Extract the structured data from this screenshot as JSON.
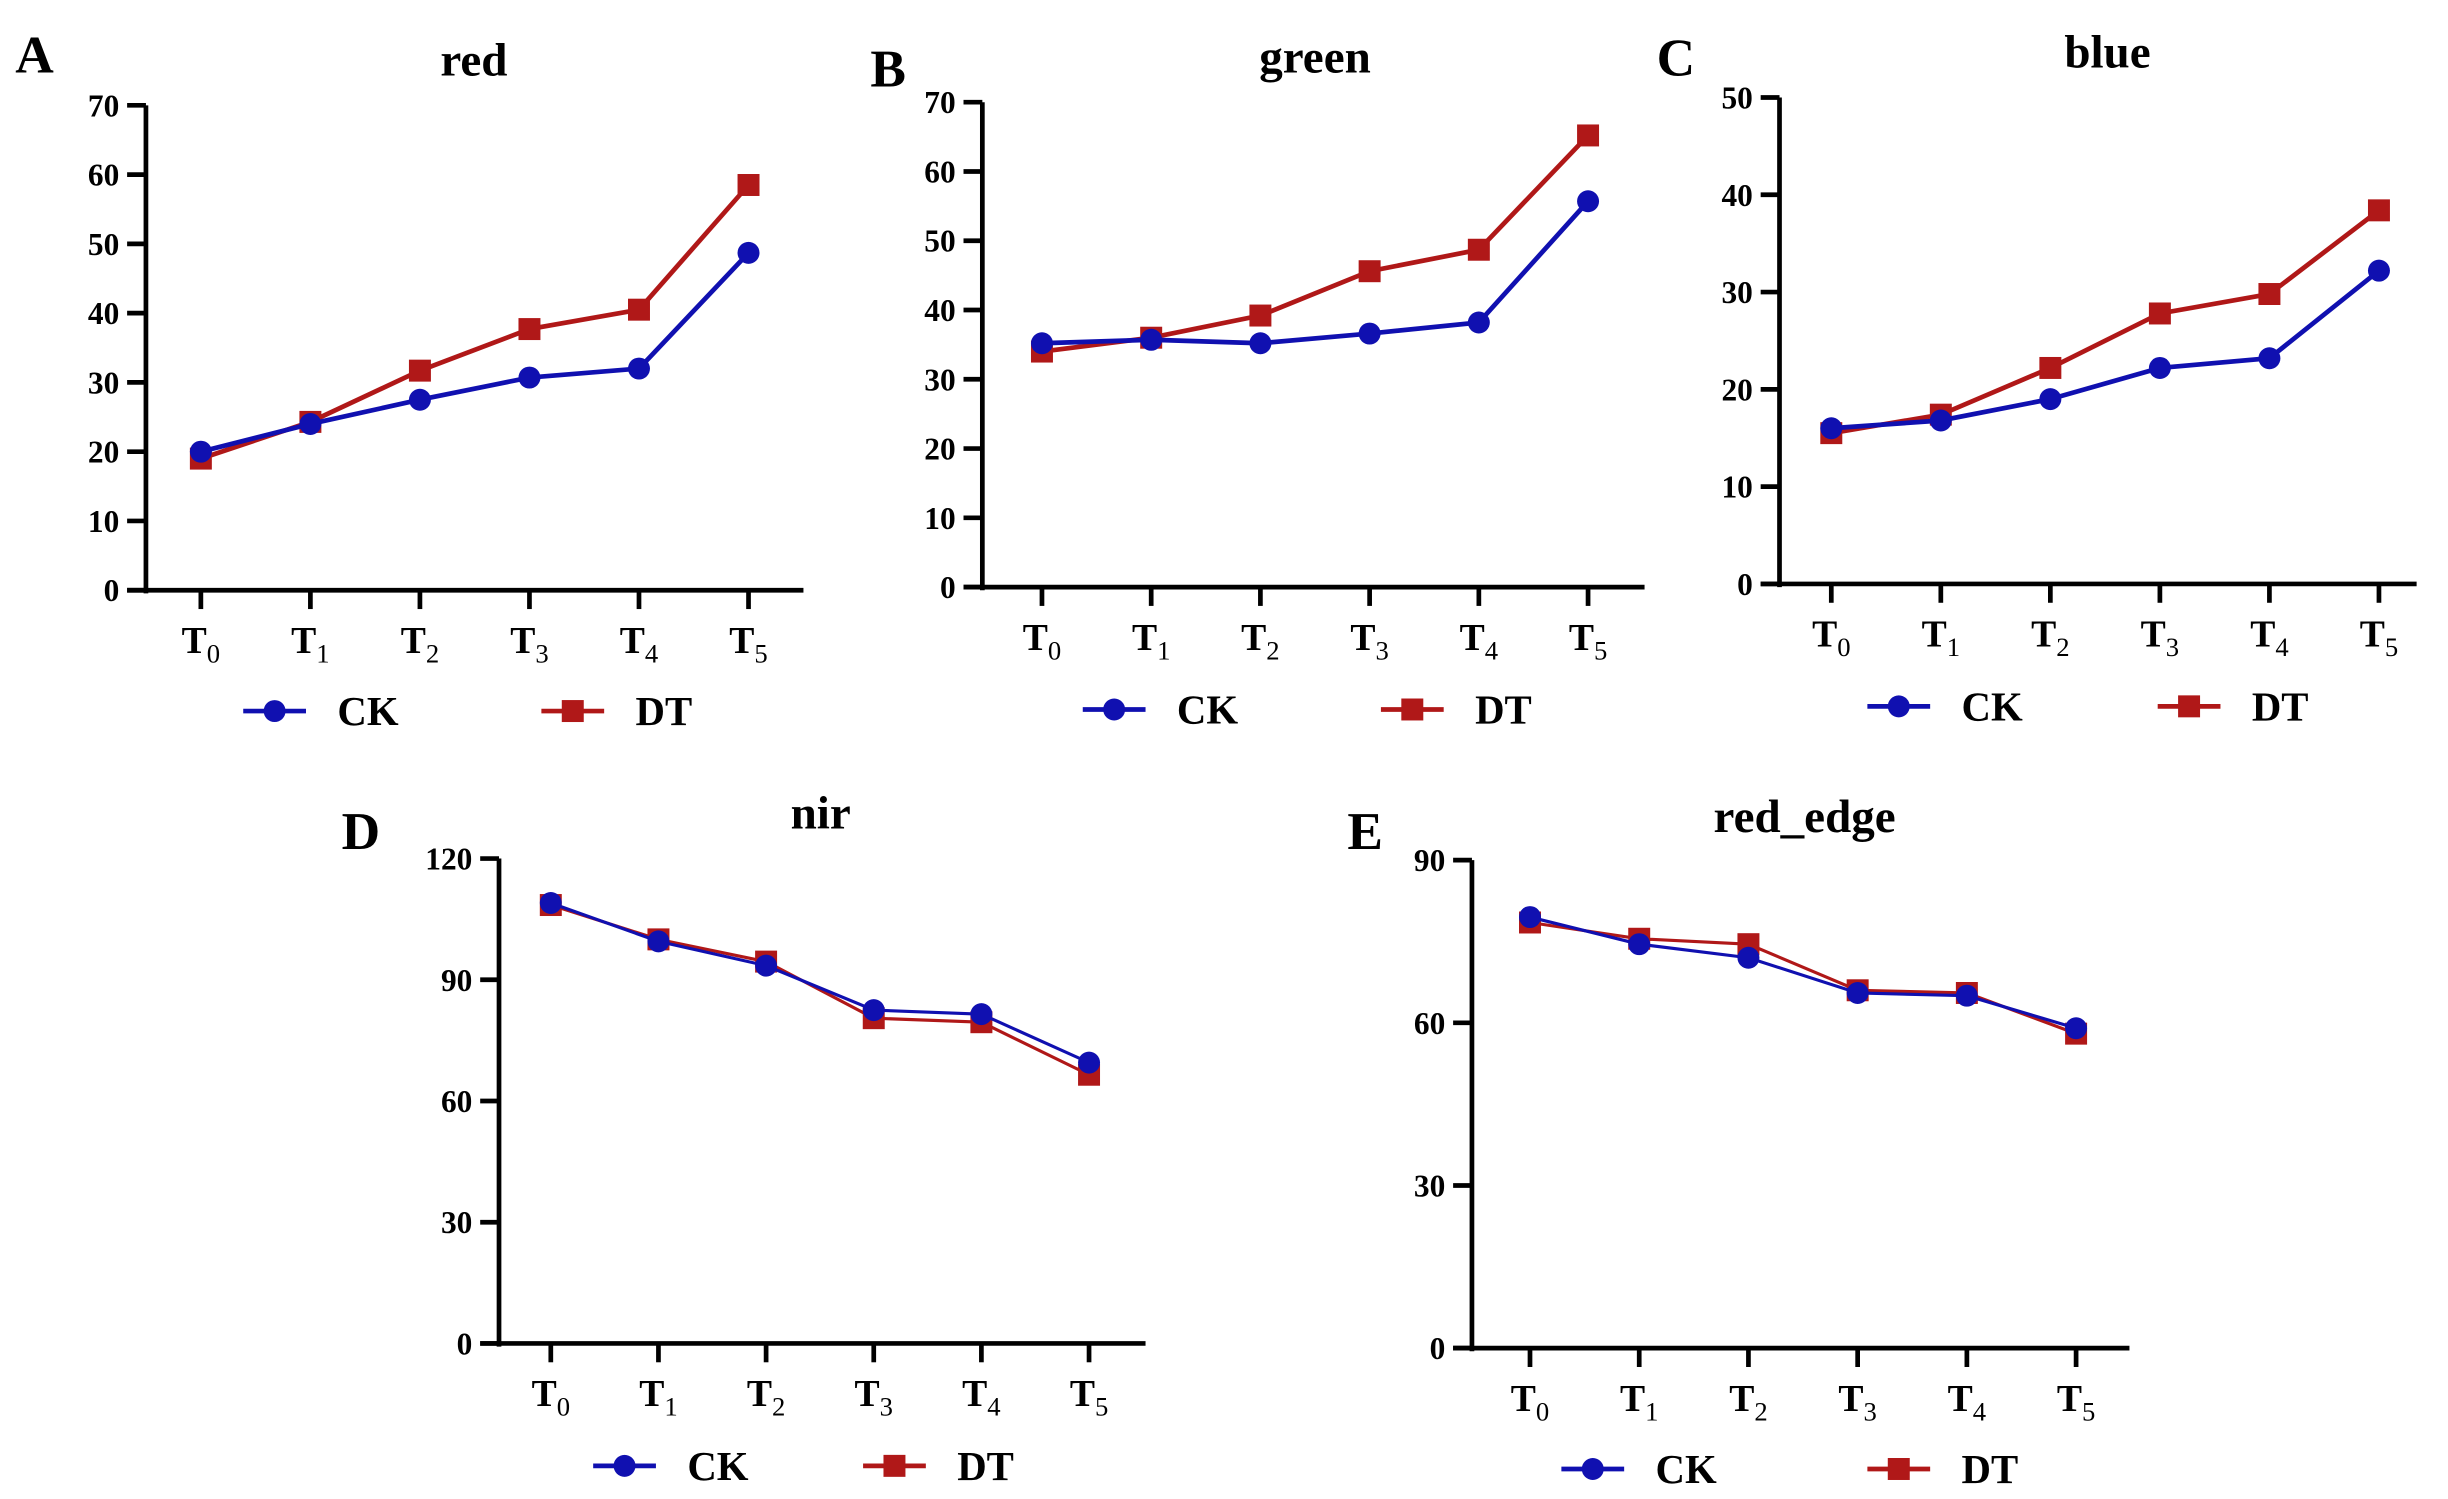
{
  "colors": {
    "CK": "#1010b0",
    "DT": "#b01818"
  },
  "chart_data": [
    {
      "panel": "A",
      "type": "line",
      "title": "red",
      "categories": [
        "T0",
        "T1",
        "T2",
        "T3",
        "T4",
        "T5"
      ],
      "ylim": [
        0,
        70
      ],
      "yticks": [
        0,
        10,
        20,
        30,
        40,
        50,
        60,
        70
      ],
      "legend": "bottom",
      "series": [
        {
          "name": "CK",
          "marker": "circle",
          "values": [
            20,
            24,
            27.5,
            30.7,
            32,
            48.7
          ]
        },
        {
          "name": "DT",
          "marker": "square",
          "values": [
            19,
            24.3,
            31.7,
            37.7,
            40.5,
            58.5
          ]
        }
      ]
    },
    {
      "panel": "B",
      "type": "line",
      "title": "green",
      "categories": [
        "T0",
        "T1",
        "T2",
        "T3",
        "T4",
        "T5"
      ],
      "ylim": [
        0,
        70
      ],
      "yticks": [
        0,
        10,
        20,
        30,
        40,
        50,
        60,
        70
      ],
      "legend": "bottom",
      "series": [
        {
          "name": "CK",
          "marker": "circle",
          "values": [
            35.2,
            35.7,
            35.2,
            36.6,
            38.2,
            55.7
          ]
        },
        {
          "name": "DT",
          "marker": "square",
          "values": [
            34,
            36,
            39.2,
            45.6,
            48.7,
            65.2
          ]
        }
      ]
    },
    {
      "panel": "C",
      "type": "line",
      "title": "blue",
      "categories": [
        "T0",
        "T1",
        "T2",
        "T3",
        "T4",
        "T5"
      ],
      "ylim": [
        0,
        50
      ],
      "yticks": [
        0,
        10,
        20,
        30,
        40,
        50
      ],
      "legend": "bottom",
      "series": [
        {
          "name": "CK",
          "marker": "circle",
          "values": [
            16,
            16.8,
            19,
            22.2,
            23.2,
            32.2
          ]
        },
        {
          "name": "DT",
          "marker": "square",
          "values": [
            15.5,
            17.4,
            22.2,
            27.8,
            29.8,
            38.4
          ]
        }
      ]
    },
    {
      "panel": "D",
      "type": "line",
      "title": "nir",
      "categories": [
        "T0",
        "T1",
        "T2",
        "T3",
        "T4",
        "T5"
      ],
      "ylim": [
        0,
        120
      ],
      "yticks": [
        0,
        30,
        60,
        90,
        120
      ],
      "legend": "bottom",
      "series": [
        {
          "name": "CK",
          "marker": "circle",
          "values": [
            109,
            99.5,
            93.5,
            82.5,
            81.5,
            69.5
          ]
        },
        {
          "name": "DT",
          "marker": "square",
          "values": [
            108.5,
            100,
            94.5,
            80.5,
            79.5,
            66.5
          ]
        }
      ]
    },
    {
      "panel": "E",
      "type": "line",
      "title": "red_edge",
      "categories": [
        "T0",
        "T1",
        "T2",
        "T3",
        "T4",
        "T5"
      ],
      "ylim": [
        0,
        90
      ],
      "yticks": [
        0,
        30,
        60,
        90
      ],
      "legend": "bottom",
      "series": [
        {
          "name": "CK",
          "marker": "circle",
          "values": [
            79.5,
            74.5,
            72,
            65.5,
            65,
            59
          ]
        },
        {
          "name": "DT",
          "marker": "square",
          "values": [
            78.5,
            75.5,
            74.5,
            66,
            65.5,
            58
          ]
        }
      ]
    }
  ]
}
